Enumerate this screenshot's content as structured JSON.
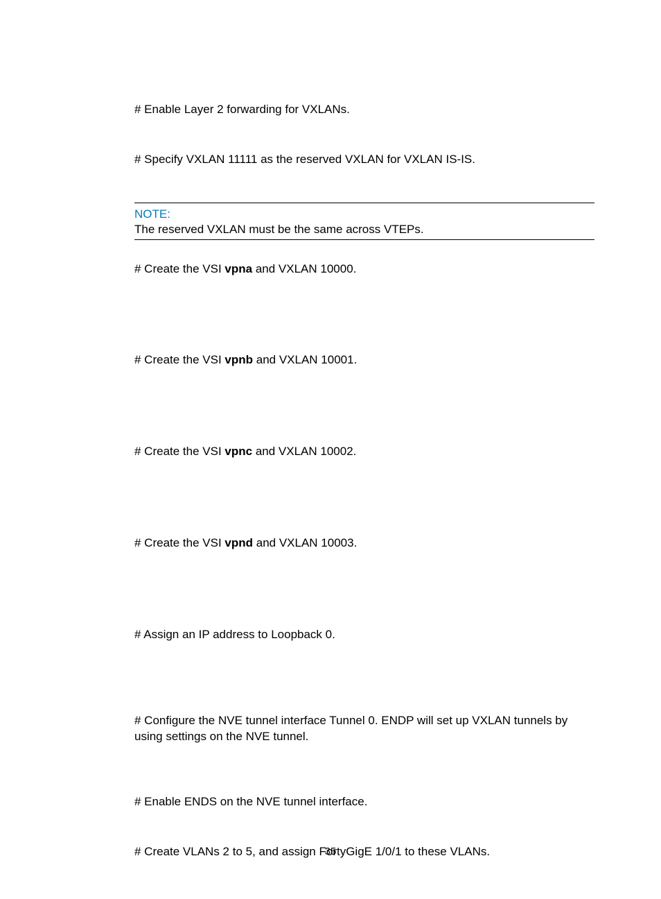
{
  "colors": {
    "text": "#000000",
    "note_label": "#007db8",
    "background": "#ffffff",
    "rule": "#000000"
  },
  "typography": {
    "body_family": "Futura, Century Gothic, Arial, sans-serif",
    "body_size_pt": 12,
    "bold_weight": 700
  },
  "lines": {
    "l1": "# Enable Layer 2 forwarding for VXLANs.",
    "l2": "# Specify VXLAN 11111 as the reserved VXLAN for VXLAN IS-IS.",
    "note_label": "NOTE:",
    "note_body": "The reserved VXLAN must be the same across VTEPs.",
    "l3a": "# Create the VSI ",
    "l3b": "vpna",
    "l3c": " and VXLAN 10000.",
    "l4a": "# Create the VSI ",
    "l4b": "vpnb",
    "l4c": " and VXLAN 10001.",
    "l5a": "# Create the VSI ",
    "l5b": "vpnc",
    "l5c": " and VXLAN 10002.",
    "l6a": "# Create the VSI ",
    "l6b": "vpnd",
    "l6c": " and VXLAN 10003.",
    "l7": "# Assign an IP address to Loopback 0.",
    "l8": "# Configure the NVE tunnel interface Tunnel 0. ENDP will set up VXLAN tunnels by using settings on the NVE tunnel.",
    "l9": "# Enable ENDS on the NVE tunnel interface.",
    "l10": "# Create VLANs 2 to 5, and assign FortyGigE 1/0/1 to these VLANs."
  },
  "page_number": "35"
}
